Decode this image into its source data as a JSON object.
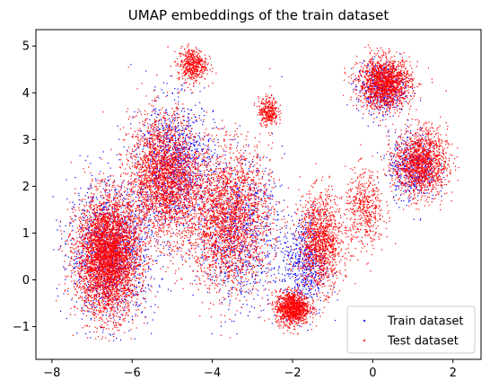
{
  "chart_data": {
    "type": "scatter",
    "title": "UMAP embeddings of the train dataset",
    "xlabel": "",
    "ylabel": "",
    "xlim": [
      -8.4,
      2.7
    ],
    "ylim": [
      -1.7,
      5.35
    ],
    "xticks": [
      -8,
      -6,
      -4,
      -2,
      0,
      2
    ],
    "xtick_labels": [
      "−8",
      "−6",
      "−4",
      "−2",
      "0",
      "2"
    ],
    "yticks": [
      -1,
      0,
      1,
      2,
      3,
      4,
      5
    ],
    "ytick_labels": [
      "−1",
      "0",
      "1",
      "2",
      "3",
      "4",
      "5"
    ],
    "grid": false,
    "legend_position": "bottom-right",
    "point_style": "dense cloud of tiny markers",
    "series": [
      {
        "name": "Train dataset",
        "color": "#0000ff",
        "approx_points": 4500,
        "clusters": [
          {
            "center": [
              -6.5,
              0.6
            ],
            "spread": [
              0.9,
              1.2
            ],
            "weight": 0.28
          },
          {
            "center": [
              -4.9,
              2.5
            ],
            "spread": [
              0.8,
              1.1
            ],
            "weight": 0.22
          },
          {
            "center": [
              -3.3,
              1.0
            ],
            "spread": [
              0.9,
              1.3
            ],
            "weight": 0.18
          },
          {
            "center": [
              -1.7,
              0.3
            ],
            "spread": [
              0.45,
              0.9
            ],
            "weight": 0.12
          },
          {
            "center": [
              0.2,
              4.1
            ],
            "spread": [
              0.5,
              0.45
            ],
            "weight": 0.1
          },
          {
            "center": [
              1.0,
              2.4
            ],
            "spread": [
              0.5,
              0.6
            ],
            "weight": 0.1
          }
        ]
      },
      {
        "name": "Test dataset",
        "color": "#ff0000",
        "approx_points": 16000,
        "clusters": [
          {
            "center": [
              -6.6,
              0.5
            ],
            "spread": [
              0.65,
              1.05
            ],
            "weight": 0.26
          },
          {
            "center": [
              -5.2,
              2.2
            ],
            "spread": [
              0.75,
              1.1
            ],
            "weight": 0.16
          },
          {
            "center": [
              -3.6,
              1.3
            ],
            "spread": [
              0.9,
              1.25
            ],
            "weight": 0.16
          },
          {
            "center": [
              -2.0,
              -0.6
            ],
            "spread": [
              0.35,
              0.3
            ],
            "weight": 0.07
          },
          {
            "center": [
              -1.3,
              0.8
            ],
            "spread": [
              0.45,
              0.85
            ],
            "weight": 0.08
          },
          {
            "center": [
              0.3,
              4.2
            ],
            "spread": [
              0.55,
              0.45
            ],
            "weight": 0.1
          },
          {
            "center": [
              1.2,
              2.5
            ],
            "spread": [
              0.55,
              0.6
            ],
            "weight": 0.09
          },
          {
            "center": [
              -4.5,
              4.6
            ],
            "spread": [
              0.3,
              0.3
            ],
            "weight": 0.03
          },
          {
            "center": [
              -2.6,
              3.6
            ],
            "spread": [
              0.2,
              0.25
            ],
            "weight": 0.02
          },
          {
            "center": [
              -0.2,
              1.5
            ],
            "spread": [
              0.4,
              0.7
            ],
            "weight": 0.03
          }
        ]
      }
    ]
  }
}
